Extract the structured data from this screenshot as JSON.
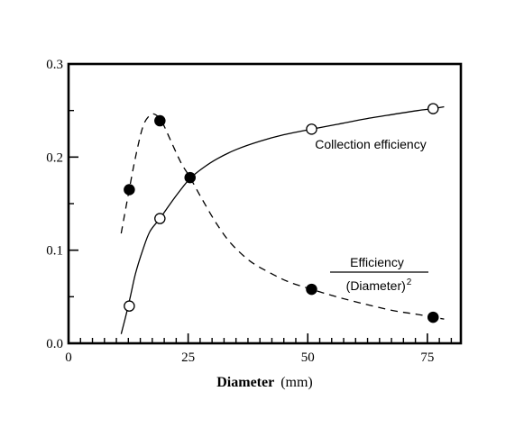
{
  "chart_data": {
    "type": "line",
    "xlabel": {
      "bold": "Diameter",
      "unit": "(mm)"
    },
    "xlim": [
      0,
      82
    ],
    "ylim": [
      0,
      0.3
    ],
    "xticks": [
      0,
      25,
      50,
      75
    ],
    "xtick_labels": [
      "0",
      "25",
      "50",
      "75"
    ],
    "yticks": [
      0,
      0.1,
      0.2,
      0.3
    ],
    "ytick_labels": [
      "0.0",
      "0.1",
      "0.2",
      "0.3"
    ],
    "x_minor_step": 2.5,
    "y_minor_step": 0.05,
    "grid": false,
    "series": [
      {
        "marker": "open-circle",
        "line": "solid",
        "points": [
          {
            "x": 12.7,
            "y": 0.04
          },
          {
            "x": 19.1,
            "y": 0.134
          },
          {
            "x": 50.8,
            "y": 0.23
          },
          {
            "x": 76.2,
            "y": 0.252
          }
        ],
        "curve": [
          [
            11,
            0.01
          ],
          [
            12,
            0.03
          ],
          [
            13,
            0.052
          ],
          [
            14,
            0.075
          ],
          [
            15.5,
            0.1
          ],
          [
            17,
            0.12
          ],
          [
            19.1,
            0.134
          ],
          [
            21,
            0.148
          ],
          [
            23,
            0.162
          ],
          [
            25.4,
            0.177
          ],
          [
            28,
            0.188
          ],
          [
            31,
            0.198
          ],
          [
            35,
            0.208
          ],
          [
            40,
            0.217
          ],
          [
            45,
            0.224
          ],
          [
            50.8,
            0.23
          ],
          [
            56,
            0.235
          ],
          [
            62,
            0.241
          ],
          [
            68,
            0.246
          ],
          [
            73,
            0.25
          ],
          [
            76.2,
            0.252
          ],
          [
            78.5,
            0.254
          ]
        ]
      },
      {
        "marker": "filled-circle",
        "line": "dashed",
        "points": [
          {
            "x": 12.7,
            "y": 0.165
          },
          {
            "x": 19.1,
            "y": 0.239
          },
          {
            "x": 25.4,
            "y": 0.178
          },
          {
            "x": 50.8,
            "y": 0.058
          },
          {
            "x": 76.2,
            "y": 0.028
          }
        ],
        "curve": [
          [
            11,
            0.118
          ],
          [
            12.5,
            0.16
          ],
          [
            14,
            0.2
          ],
          [
            15.5,
            0.232
          ],
          [
            16.8,
            0.244
          ],
          [
            18,
            0.246
          ],
          [
            19.5,
            0.238
          ],
          [
            21.5,
            0.216
          ],
          [
            23.5,
            0.194
          ],
          [
            25.4,
            0.178
          ],
          [
            28,
            0.154
          ],
          [
            31,
            0.128
          ],
          [
            34,
            0.107
          ],
          [
            38,
            0.088
          ],
          [
            42,
            0.076
          ],
          [
            46,
            0.066
          ],
          [
            50.8,
            0.058
          ],
          [
            56,
            0.05
          ],
          [
            62,
            0.042
          ],
          [
            68,
            0.035
          ],
          [
            73,
            0.031
          ],
          [
            76.2,
            0.028
          ],
          [
            78.5,
            0.026
          ]
        ]
      }
    ],
    "annotations": {
      "collection": "Collection efficiency",
      "ratio_numerator": "Efficiency",
      "ratio_denominator": "(Diameter)",
      "ratio_exponent": "2"
    }
  }
}
